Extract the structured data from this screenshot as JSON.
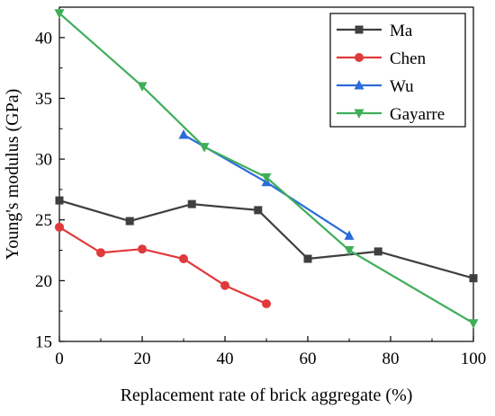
{
  "chart_data": {
    "type": "line",
    "xlabel": "Replacement rate of brick aggregate (%)",
    "ylabel": "Young's modulus (GPa)",
    "xlim": [
      0,
      100
    ],
    "ylim": [
      15,
      42.5
    ],
    "x_ticks": [
      "0",
      "20",
      "40",
      "60",
      "80",
      "100"
    ],
    "y_ticks": [
      "15",
      "20",
      "25",
      "30",
      "35",
      "40"
    ],
    "legend_position": "top-right",
    "grid": false,
    "series": [
      {
        "name": "Ma",
        "color": "#3f3f3f",
        "marker": "square",
        "x": [
          0,
          17,
          32,
          48,
          60,
          77,
          100
        ],
        "y": [
          26.6,
          24.9,
          26.3,
          25.8,
          21.8,
          22.4,
          20.2
        ]
      },
      {
        "name": "Chen",
        "color": "#e0393c",
        "marker": "circle",
        "x": [
          0,
          10,
          20,
          30,
          40,
          50
        ],
        "y": [
          24.4,
          22.3,
          22.6,
          21.8,
          19.6,
          18.1
        ]
      },
      {
        "name": "Wu",
        "color": "#2b6bd9",
        "marker": "triangle-up",
        "x": [
          30,
          50,
          70
        ],
        "y": [
          32.0,
          28.1,
          23.7
        ]
      },
      {
        "name": "Gayarre",
        "color": "#3fae5a",
        "marker": "triangle-down",
        "x": [
          0,
          20,
          35,
          50,
          70,
          100
        ],
        "y": [
          42.0,
          36.0,
          31.0,
          28.5,
          22.5,
          16.5
        ]
      }
    ]
  }
}
